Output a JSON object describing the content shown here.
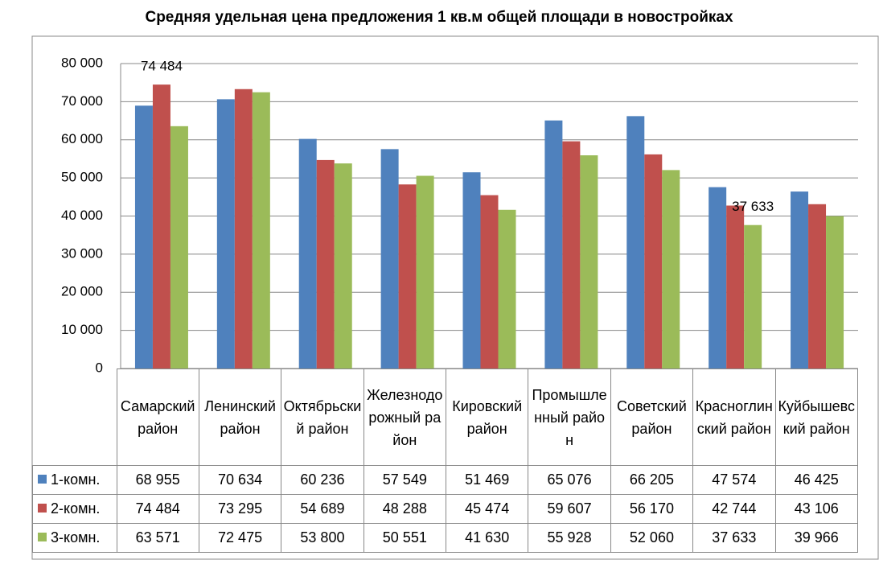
{
  "chart_data": {
    "type": "bar",
    "title": "Средняя удельная цена предложения 1 кв.м общей площади в новостройках",
    "categories": [
      "Самарский район",
      "Ленинский район",
      "Октябрьский район",
      "Железнодорожный район",
      "Кировский район",
      "Промышленный район",
      "Советский район",
      "Красноглинский район",
      "Куйбышевский район"
    ],
    "series": [
      {
        "name": "1-комн.",
        "color": "#4f81bd",
        "values": [
          68955,
          70634,
          60236,
          57549,
          51469,
          65076,
          66205,
          47574,
          46425
        ],
        "value_labels": [
          "68 955",
          "70 634",
          "60 236",
          "57 549",
          "51 469",
          "65 076",
          "66 205",
          "47 574",
          "46 425"
        ]
      },
      {
        "name": "2-комн.",
        "color": "#c0504d",
        "values": [
          74484,
          73295,
          54689,
          48288,
          45474,
          59607,
          56170,
          42744,
          43106
        ],
        "value_labels": [
          "74 484",
          "73 295",
          "54 689",
          "48 288",
          "45 474",
          "59 607",
          "56 170",
          "42 744",
          "43 106"
        ]
      },
      {
        "name": "3-комн.",
        "color": "#9bbb59",
        "values": [
          63571,
          72475,
          53800,
          50551,
          41630,
          55928,
          52060,
          37633,
          39966
        ],
        "value_labels": [
          "63 571",
          "72 475",
          "53 800",
          "50 551",
          "41 630",
          "55 928",
          "52 060",
          "37 633",
          "39 966"
        ]
      }
    ],
    "annotations": [
      {
        "label": "74 484",
        "series": "2-комн.",
        "category": "Самарский район"
      },
      {
        "label": "37 633",
        "series": "3-комн.",
        "category": "Красноглинский район"
      }
    ],
    "ylim": [
      0,
      80000
    ],
    "yticks": [
      0,
      {
        "value": 10000,
        "label": "10 000"
      },
      {
        "value": 20000,
        "label": "20 000"
      },
      {
        "value": 30000,
        "label": "30 000"
      },
      {
        "value": 40000,
        "label": "40 000"
      },
      {
        "value": 50000,
        "label": "50 000"
      },
      {
        "value": 60000,
        "label": "60 000"
      },
      {
        "value": 70000,
        "label": "70 000"
      },
      {
        "value": 80000,
        "label": "80 000"
      }
    ],
    "grid": true
  }
}
